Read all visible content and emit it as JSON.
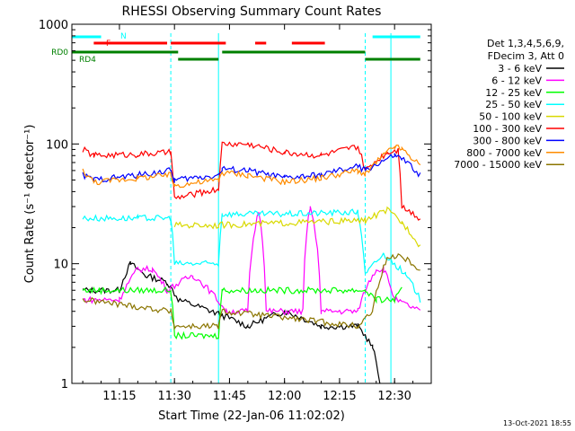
{
  "chart_data": {
    "type": "line",
    "title": "RHESSI Observing Summary Count Rates",
    "xlabel": "Start Time (22-Jan-06 11:02:02)",
    "ylabel": "Count Rate (s⁻¹ detector⁻¹)",
    "y_scale": "log",
    "ylim": [
      1,
      1000
    ],
    "xlim": [
      "11:02:02",
      "12:40:00"
    ],
    "x_ticks": [
      "11:15",
      "11:30",
      "11:45",
      "12:00",
      "12:15",
      "12:30"
    ],
    "y_ticks": [
      "1",
      "10",
      "100",
      "1000"
    ],
    "legend_header": [
      "Det 1,3,4,5,6,9,",
      "FDecim 3, Att 0"
    ],
    "legend_position": "right",
    "series": [
      {
        "name": "3 - 6 keV",
        "color": "#000000",
        "points": [
          [
            "11:05",
            6
          ],
          [
            "11:15",
            6
          ],
          [
            "11:18",
            10
          ],
          [
            "11:22",
            8
          ],
          [
            "11:28",
            7
          ],
          [
            "11:31",
            5
          ],
          [
            "11:40",
            4
          ],
          [
            "11:50",
            3
          ],
          [
            "12:00",
            4
          ],
          [
            "12:10",
            3
          ],
          [
            "12:20",
            3
          ],
          [
            "12:24",
            2
          ],
          [
            "12:26",
            1
          ]
        ]
      },
      {
        "name": "6 - 12 keV",
        "color": "#ff00ff",
        "points": [
          [
            "11:05",
            5
          ],
          [
            "11:15",
            5
          ],
          [
            "11:20",
            9
          ],
          [
            "11:24",
            9
          ],
          [
            "11:28",
            6
          ],
          [
            "11:35",
            8
          ],
          [
            "11:44",
            4
          ],
          [
            "11:50",
            4
          ],
          [
            "11:53",
            28
          ],
          [
            "11:55",
            4
          ],
          [
            "12:05",
            4
          ],
          [
            "12:07",
            30
          ],
          [
            "12:10",
            4
          ],
          [
            "12:20",
            4
          ],
          [
            "12:25",
            9
          ],
          [
            "12:27",
            9
          ],
          [
            "12:30",
            5
          ],
          [
            "12:37",
            4
          ]
        ]
      },
      {
        "name": "12 - 25 keV",
        "color": "#00ff00",
        "points": [
          [
            "11:05",
            6
          ],
          [
            "11:29",
            6
          ],
          [
            "11:30",
            2.5
          ],
          [
            "11:42",
            2.5
          ],
          [
            "11:43",
            6
          ],
          [
            "12:22",
            6
          ],
          [
            "12:25",
            5
          ],
          [
            "12:30",
            5
          ],
          [
            "12:32",
            6
          ]
        ]
      },
      {
        "name": "25 - 50 keV",
        "color": "#00ffff",
        "points": [
          [
            "11:05",
            24
          ],
          [
            "11:20",
            24
          ],
          [
            "11:29",
            24
          ],
          [
            "11:30",
            10
          ],
          [
            "11:42",
            10
          ],
          [
            "11:43",
            26
          ],
          [
            "12:00",
            26
          ],
          [
            "12:20",
            27
          ],
          [
            "12:22",
            8
          ],
          [
            "12:27",
            12
          ],
          [
            "12:33",
            8
          ],
          [
            "12:37",
            5
          ]
        ]
      },
      {
        "name": "50 - 100 keV",
        "color": "#d9d900",
        "points": [
          [
            "11:30",
            21
          ],
          [
            "11:42",
            21
          ],
          [
            "12:22",
            23
          ],
          [
            "12:28",
            28
          ],
          [
            "12:32",
            22
          ],
          [
            "12:37",
            14
          ]
        ]
      },
      {
        "name": "100 - 300 keV",
        "color": "#ff0000",
        "points": [
          [
            "11:05",
            90
          ],
          [
            "11:08",
            80
          ],
          [
            "11:20",
            82
          ],
          [
            "11:29",
            85
          ],
          [
            "11:30",
            35
          ],
          [
            "11:42",
            42
          ],
          [
            "11:43",
            100
          ],
          [
            "11:50",
            100
          ],
          [
            "12:00",
            85
          ],
          [
            "12:10",
            80
          ],
          [
            "12:20",
            95
          ],
          [
            "12:22",
            60
          ],
          [
            "12:28",
            85
          ],
          [
            "12:31",
            90
          ],
          [
            "12:32",
            30
          ],
          [
            "12:37",
            24
          ]
        ]
      },
      {
        "name": "300 - 800 keV",
        "color": "#0000ff",
        "points": [
          [
            "11:05",
            55
          ],
          [
            "11:08",
            50
          ],
          [
            "11:20",
            55
          ],
          [
            "11:29",
            60
          ],
          [
            "11:30",
            50
          ],
          [
            "11:42",
            55
          ],
          [
            "11:43",
            62
          ],
          [
            "11:50",
            60
          ],
          [
            "12:00",
            52
          ],
          [
            "12:10",
            55
          ],
          [
            "12:20",
            65
          ],
          [
            "12:22",
            60
          ],
          [
            "12:30",
            80
          ],
          [
            "12:32",
            75
          ],
          [
            "12:37",
            55
          ]
        ]
      },
      {
        "name": "800 - 7000 keV",
        "color": "#ff8c00",
        "points": [
          [
            "11:05",
            60
          ],
          [
            "11:08",
            48
          ],
          [
            "11:20",
            52
          ],
          [
            "11:29",
            55
          ],
          [
            "11:30",
            45
          ],
          [
            "11:42",
            50
          ],
          [
            "11:43",
            58
          ],
          [
            "11:50",
            55
          ],
          [
            "12:00",
            48
          ],
          [
            "12:10",
            52
          ],
          [
            "12:20",
            60
          ],
          [
            "12:22",
            55
          ],
          [
            "12:30",
            95
          ],
          [
            "12:32",
            90
          ],
          [
            "12:37",
            65
          ]
        ]
      },
      {
        "name": "7000 - 15000 keV",
        "color": "#8b7500",
        "points": [
          [
            "11:05",
            5
          ],
          [
            "11:29",
            4
          ],
          [
            "11:30",
            3
          ],
          [
            "11:42",
            3
          ],
          [
            "11:43",
            4
          ],
          [
            "12:20",
            3
          ],
          [
            "12:24",
            4
          ],
          [
            "12:28",
            11
          ],
          [
            "12:31",
            12
          ],
          [
            "12:37",
            9
          ]
        ]
      }
    ],
    "flags": [
      {
        "label": "N",
        "color": "#00ffff"
      },
      {
        "label": "F",
        "color": "#ff0000"
      },
      {
        "label": "RD0",
        "color": "#008000"
      },
      {
        "label": "RD4",
        "color": "#008000"
      }
    ],
    "footer_date": "13-Oct-2021 18:55"
  }
}
